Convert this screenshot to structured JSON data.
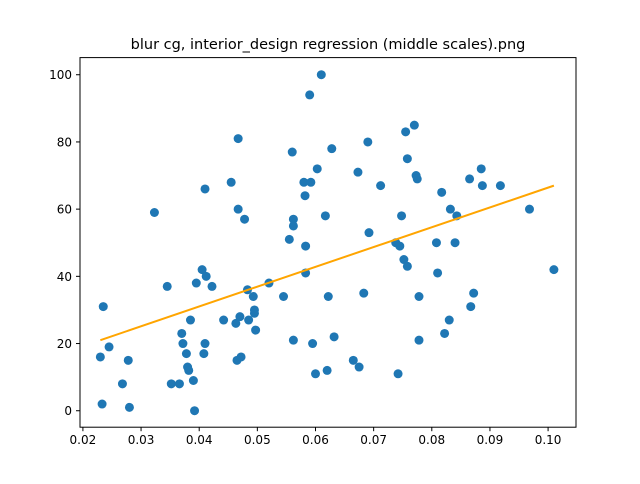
{
  "chart_data": {
    "type": "scatter",
    "title": "blur cg, interior_design regression (middle scales).png",
    "xlabel": "",
    "ylabel": "",
    "xlim": [
      0.0195,
      0.1048
    ],
    "ylim": [
      -4.9,
      105.1
    ],
    "x_ticks": [
      "0.02",
      "0.03",
      "0.04",
      "0.05",
      "0.06",
      "0.07",
      "0.08",
      "0.09",
      "0.10"
    ],
    "x_tick_values": [
      0.02,
      0.03,
      0.04,
      0.05,
      0.06,
      0.07,
      0.08,
      0.09,
      0.1
    ],
    "y_ticks": [
      "0",
      "20",
      "40",
      "60",
      "80",
      "100"
    ],
    "y_tick_values": [
      0,
      20,
      40,
      60,
      80,
      100
    ],
    "grid": false,
    "colors": {
      "points": "#1f77b4",
      "regression_line": "#ffa500",
      "axes": "#000000"
    },
    "series": [
      {
        "kind": "points",
        "points": [
          [
            0.023,
            16
          ],
          [
            0.0233,
            2
          ],
          [
            0.0235,
            31
          ],
          [
            0.0245,
            19
          ],
          [
            0.0268,
            8
          ],
          [
            0.0278,
            15
          ],
          [
            0.028,
            1
          ],
          [
            0.0323,
            59
          ],
          [
            0.0345,
            37
          ],
          [
            0.0352,
            8
          ],
          [
            0.0366,
            8
          ],
          [
            0.037,
            23
          ],
          [
            0.0372,
            20
          ],
          [
            0.0378,
            17
          ],
          [
            0.038,
            13
          ],
          [
            0.0382,
            12
          ],
          [
            0.0385,
            27
          ],
          [
            0.039,
            9
          ],
          [
            0.0392,
            0
          ],
          [
            0.0395,
            38
          ],
          [
            0.0405,
            42
          ],
          [
            0.0408,
            17
          ],
          [
            0.041,
            20
          ],
          [
            0.041,
            66
          ],
          [
            0.0412,
            40
          ],
          [
            0.0422,
            37
          ],
          [
            0.0442,
            27
          ],
          [
            0.0455,
            68
          ],
          [
            0.0463,
            26
          ],
          [
            0.0465,
            15
          ],
          [
            0.0467,
            60
          ],
          [
            0.0467,
            81
          ],
          [
            0.047,
            28
          ],
          [
            0.0472,
            16
          ],
          [
            0.0478,
            57
          ],
          [
            0.0483,
            36
          ],
          [
            0.0485,
            27
          ],
          [
            0.0493,
            34
          ],
          [
            0.0495,
            30
          ],
          [
            0.0495,
            29
          ],
          [
            0.0497,
            24
          ],
          [
            0.052,
            38
          ],
          [
            0.0545,
            34
          ],
          [
            0.0555,
            51
          ],
          [
            0.056,
            77
          ],
          [
            0.0562,
            57
          ],
          [
            0.0562,
            55
          ],
          [
            0.0562,
            21
          ],
          [
            0.058,
            68
          ],
          [
            0.0582,
            64
          ],
          [
            0.0583,
            49
          ],
          [
            0.0583,
            41
          ],
          [
            0.059,
            94
          ],
          [
            0.0592,
            68
          ],
          [
            0.0595,
            20
          ],
          [
            0.06,
            11
          ],
          [
            0.0603,
            72
          ],
          [
            0.061,
            100
          ],
          [
            0.0617,
            58
          ],
          [
            0.062,
            12
          ],
          [
            0.0622,
            34
          ],
          [
            0.0628,
            78
          ],
          [
            0.0632,
            22
          ],
          [
            0.0665,
            15
          ],
          [
            0.0673,
            71
          ],
          [
            0.0675,
            13
          ],
          [
            0.0683,
            35
          ],
          [
            0.069,
            80
          ],
          [
            0.0692,
            53
          ],
          [
            0.0712,
            67
          ],
          [
            0.0738,
            50
          ],
          [
            0.0742,
            11
          ],
          [
            0.0745,
            49
          ],
          [
            0.0748,
            58
          ],
          [
            0.0752,
            45
          ],
          [
            0.0755,
            83
          ],
          [
            0.0758,
            75
          ],
          [
            0.0758,
            43
          ],
          [
            0.077,
            85
          ],
          [
            0.0773,
            70
          ],
          [
            0.0775,
            69
          ],
          [
            0.0778,
            34
          ],
          [
            0.0778,
            21
          ],
          [
            0.0808,
            50
          ],
          [
            0.081,
            41
          ],
          [
            0.0817,
            65
          ],
          [
            0.0822,
            23
          ],
          [
            0.083,
            27
          ],
          [
            0.0832,
            60
          ],
          [
            0.084,
            50
          ],
          [
            0.0843,
            58
          ],
          [
            0.0865,
            69
          ],
          [
            0.0867,
            31
          ],
          [
            0.0872,
            35
          ],
          [
            0.0885,
            72
          ],
          [
            0.0887,
            67
          ],
          [
            0.0918,
            67
          ],
          [
            0.0968,
            60
          ],
          [
            0.101,
            42
          ]
        ]
      },
      {
        "kind": "regression-line",
        "points": [
          [
            0.023,
            21
          ],
          [
            0.101,
            67
          ]
        ]
      }
    ]
  }
}
